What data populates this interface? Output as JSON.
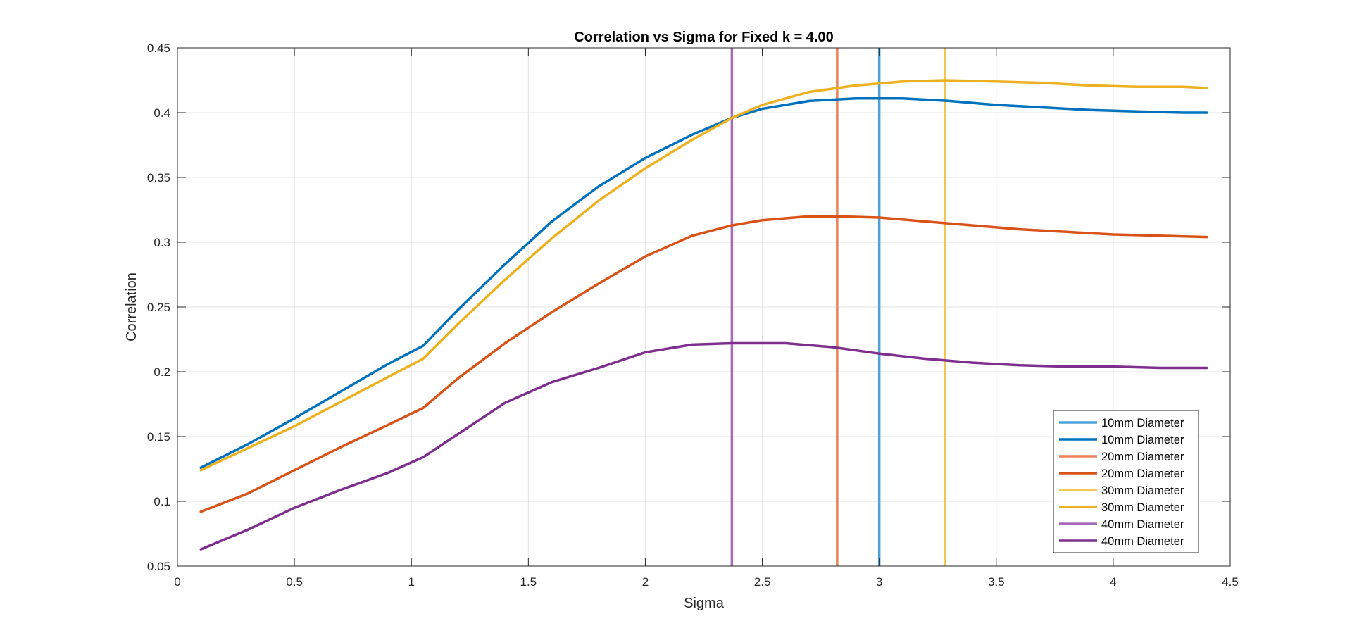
{
  "chart_data": {
    "type": "line",
    "title": "Correlation vs Sigma for Fixed k = 4.00",
    "xlabel": "Sigma",
    "ylabel": "Correlation",
    "xlim": [
      0,
      4.5
    ],
    "ylim": [
      0.05,
      0.45
    ],
    "xticks": [
      0,
      0.5,
      1,
      1.5,
      2,
      2.5,
      3,
      3.5,
      4,
      4.5
    ],
    "xtick_labels": [
      "0",
      "0.5",
      "1",
      "1.5",
      "2",
      "2.5",
      "3",
      "3.5",
      "4",
      "4.5"
    ],
    "yticks": [
      0.05,
      0.1,
      0.15,
      0.2,
      0.25,
      0.3,
      0.35,
      0.4,
      0.45
    ],
    "ytick_labels": [
      "0.05",
      "0.1",
      "0.15",
      "0.2",
      "0.25",
      "0.3",
      "0.35",
      "0.4",
      "0.45"
    ],
    "grid": true,
    "legend_position": "bottom-right",
    "legend": [
      {
        "label": "10mm Diameter",
        "color": "#4da3d9",
        "kind": "vline"
      },
      {
        "label": "10mm Diameter",
        "color": "#0072bd",
        "kind": "curve"
      },
      {
        "label": "20mm Diameter",
        "color": "#ec8057",
        "kind": "vline"
      },
      {
        "label": "20mm Diameter",
        "color": "#d95319",
        "kind": "curve"
      },
      {
        "label": "30mm Diameter",
        "color": "#f3c653",
        "kind": "vline"
      },
      {
        "label": "30mm Diameter",
        "color": "#edb120",
        "kind": "curve"
      },
      {
        "label": "40mm Diameter",
        "color": "#a66cb8",
        "kind": "vline"
      },
      {
        "label": "40mm Diameter",
        "color": "#7e2f8e",
        "kind": "curve"
      }
    ],
    "vlines": [
      {
        "label": "10mm Diameter",
        "x": 3.0,
        "color": "#4da3d9"
      },
      {
        "label": "20mm Diameter",
        "x": 2.82,
        "color": "#ec8057"
      },
      {
        "label": "30mm Diameter",
        "x": 3.28,
        "color": "#f3c653"
      },
      {
        "label": "40mm Diameter",
        "x": 2.37,
        "color": "#a66cb8"
      }
    ],
    "series": [
      {
        "name": "10mm Diameter",
        "color": "#0072bd",
        "x": [
          0.1,
          0.3,
          0.5,
          0.7,
          0.9,
          1.05,
          1.2,
          1.4,
          1.6,
          1.8,
          2.0,
          2.2,
          2.37,
          2.5,
          2.7,
          2.9,
          3.0,
          3.1,
          3.3,
          3.5,
          3.7,
          3.9,
          4.1,
          4.3,
          4.4
        ],
        "values": [
          0.126,
          0.144,
          0.164,
          0.185,
          0.206,
          0.22,
          0.248,
          0.283,
          0.316,
          0.343,
          0.365,
          0.383,
          0.396,
          0.403,
          0.409,
          0.411,
          0.411,
          0.411,
          0.409,
          0.406,
          0.404,
          0.402,
          0.401,
          0.4,
          0.4
        ]
      },
      {
        "name": "20mm Diameter",
        "color": "#d95319",
        "x": [
          0.1,
          0.3,
          0.5,
          0.7,
          0.9,
          1.05,
          1.2,
          1.4,
          1.6,
          1.8,
          2.0,
          2.2,
          2.37,
          2.5,
          2.7,
          2.82,
          3.0,
          3.2,
          3.4,
          3.6,
          3.8,
          4.0,
          4.2,
          4.4
        ],
        "values": [
          0.092,
          0.106,
          0.124,
          0.142,
          0.159,
          0.172,
          0.195,
          0.222,
          0.246,
          0.268,
          0.289,
          0.305,
          0.313,
          0.317,
          0.32,
          0.32,
          0.319,
          0.316,
          0.313,
          0.31,
          0.308,
          0.306,
          0.305,
          0.304
        ]
      },
      {
        "name": "30mm Diameter",
        "color": "#edb120",
        "x": [
          0.1,
          0.3,
          0.5,
          0.7,
          0.9,
          1.05,
          1.2,
          1.4,
          1.6,
          1.8,
          2.0,
          2.2,
          2.37,
          2.5,
          2.7,
          2.9,
          3.1,
          3.28,
          3.5,
          3.7,
          3.9,
          4.1,
          4.3,
          4.4
        ],
        "values": [
          0.124,
          0.141,
          0.158,
          0.177,
          0.196,
          0.21,
          0.237,
          0.271,
          0.303,
          0.332,
          0.357,
          0.379,
          0.396,
          0.406,
          0.416,
          0.421,
          0.424,
          0.425,
          0.424,
          0.423,
          0.421,
          0.42,
          0.42,
          0.419
        ]
      },
      {
        "name": "40mm Diameter",
        "color": "#7e2f8e",
        "x": [
          0.1,
          0.3,
          0.5,
          0.7,
          0.9,
          1.05,
          1.2,
          1.4,
          1.6,
          1.8,
          2.0,
          2.2,
          2.37,
          2.6,
          2.8,
          3.0,
          3.2,
          3.4,
          3.6,
          3.8,
          4.0,
          4.2,
          4.4
        ],
        "values": [
          0.063,
          0.078,
          0.095,
          0.109,
          0.122,
          0.134,
          0.152,
          0.176,
          0.192,
          0.203,
          0.215,
          0.221,
          0.222,
          0.222,
          0.219,
          0.214,
          0.21,
          0.207,
          0.205,
          0.204,
          0.204,
          0.203,
          0.203
        ]
      }
    ]
  }
}
